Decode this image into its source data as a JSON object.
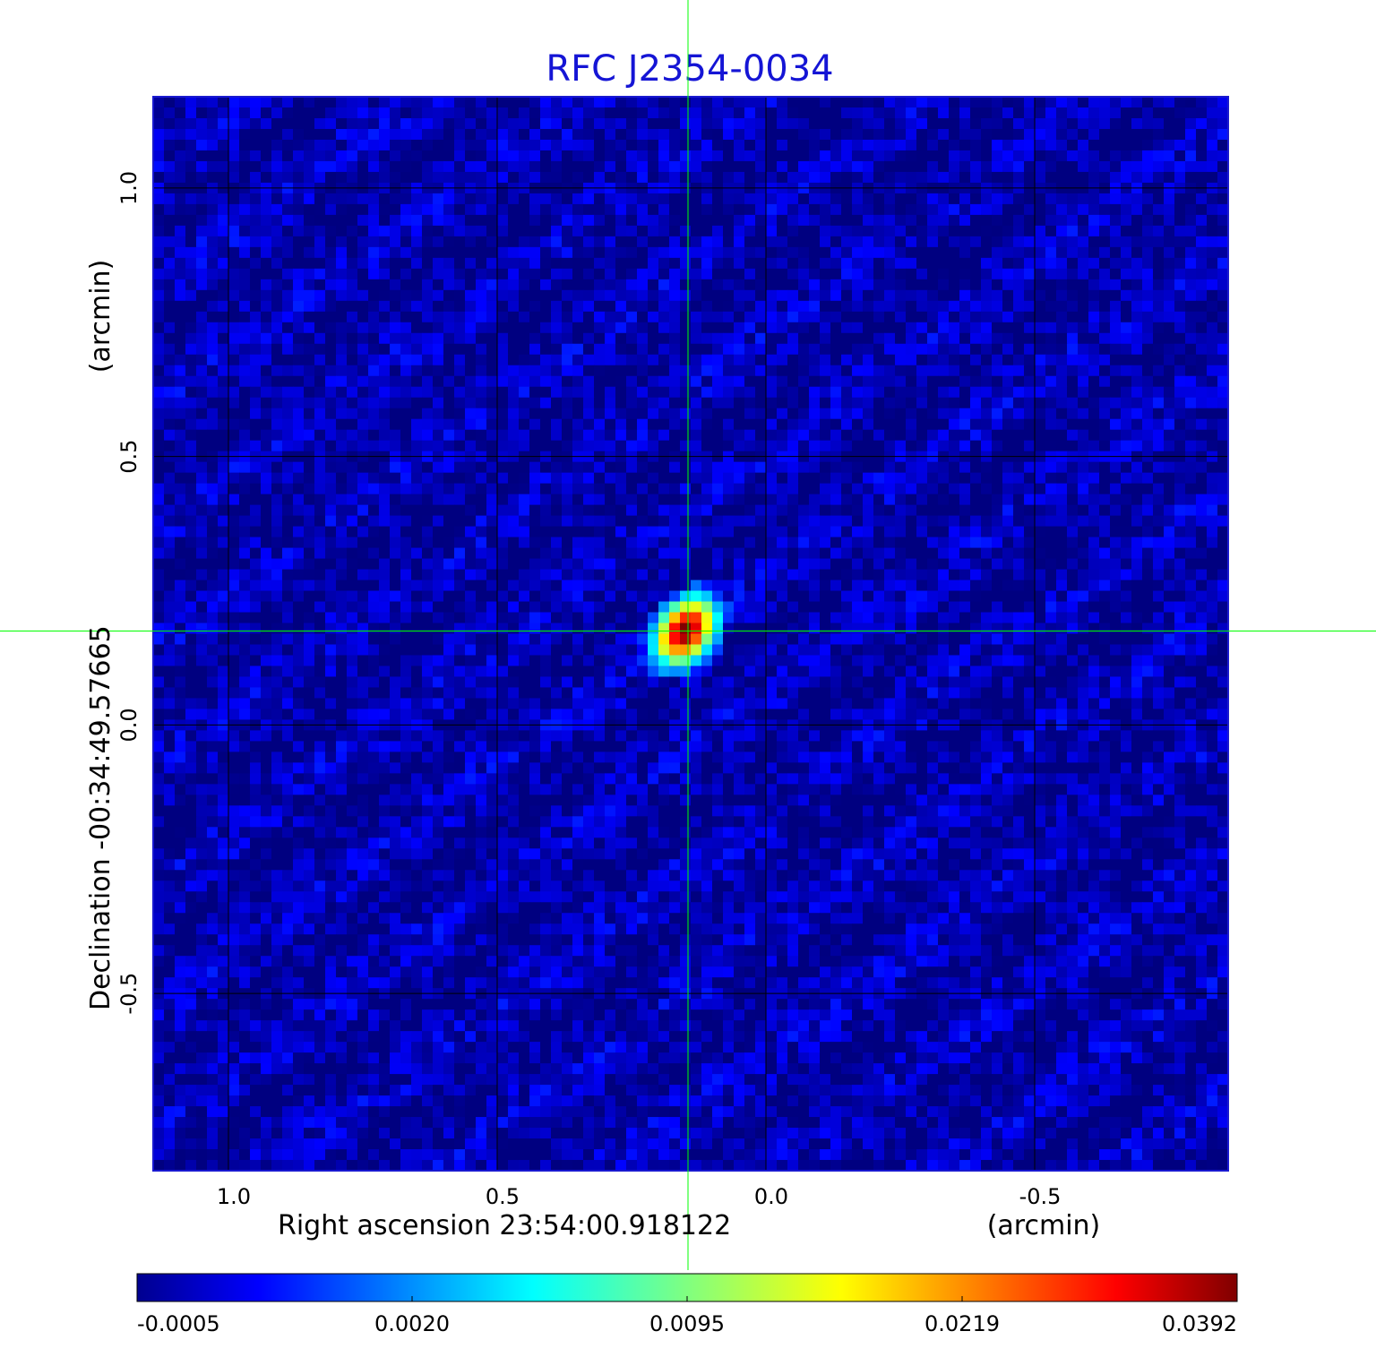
{
  "chart_data": {
    "type": "heatmap",
    "title": "RFC J2354-0034",
    "xlabel": "Right ascension  23:54:00.918122",
    "xunit": "(arcmin)",
    "ylabel": "Declination  -00:34:49.57665",
    "yunit": "(arcmin)",
    "xlim": [
      1.14,
      -0.86
    ],
    "ylim": [
      -0.83,
      1.17
    ],
    "x_ticks": [
      1.0,
      0.5,
      0.0,
      -0.5
    ],
    "x_tick_labels": [
      "1.0",
      "0.5",
      "0.0",
      "-0.5"
    ],
    "y_ticks": [
      1.0,
      0.5,
      0.0,
      -0.5
    ],
    "y_tick_labels": [
      "1.0",
      "0.5",
      "0.0",
      "-0.5"
    ],
    "grid": true,
    "crosshair": {
      "x": 0.145,
      "y": 0.175,
      "color": "#00ff00"
    },
    "source_peak": {
      "x": 0.15,
      "y": 0.175,
      "value": 0.0392,
      "fwhm_x": 0.06,
      "fwhm_y": 0.085
    },
    "background_level": -0.0001,
    "colorbar": {
      "colormap": "jet",
      "tick_labels": [
        "-0.0005",
        "0.0020",
        "0.0095",
        "0.0219",
        "0.0392"
      ],
      "tick_fractions": [
        0.0,
        0.25,
        0.5,
        0.75,
        1.0
      ]
    },
    "colors": {
      "title": "#1515d5",
      "grid": "#000000",
      "frame": "#1a1ad0"
    }
  }
}
